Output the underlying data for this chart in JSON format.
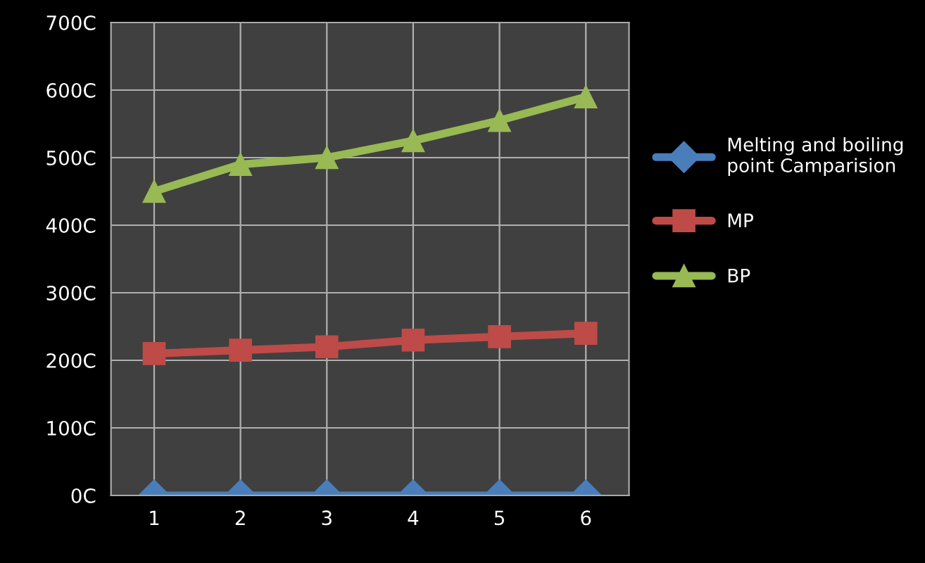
{
  "chart_data": {
    "type": "line",
    "categories": [
      "1",
      "2",
      "3",
      "4",
      "5",
      "6"
    ],
    "series": [
      {
        "name": "Melting and boiling point Camparision",
        "color": "#4a7ebb",
        "marker": "diamond",
        "values": [
          0,
          0,
          0,
          0,
          0,
          0
        ]
      },
      {
        "name": "MP",
        "color": "#be4b48",
        "marker": "square",
        "values": [
          210,
          215,
          220,
          230,
          235,
          240
        ]
      },
      {
        "name": "BP",
        "color": "#98b954",
        "marker": "triangle",
        "values": [
          450,
          490,
          500,
          525,
          555,
          590
        ]
      }
    ],
    "ylim": [
      0,
      700
    ],
    "yticks": [
      {
        "value": 0,
        "label": "0C"
      },
      {
        "value": 100,
        "label": "100C"
      },
      {
        "value": 200,
        "label": "200C"
      },
      {
        "value": 300,
        "label": "300C"
      },
      {
        "value": 400,
        "label": "400C"
      },
      {
        "value": 500,
        "label": "500C"
      },
      {
        "value": 600,
        "label": "600C"
      },
      {
        "value": 700,
        "label": "700C"
      }
    ],
    "grid": true,
    "legend": "right"
  }
}
